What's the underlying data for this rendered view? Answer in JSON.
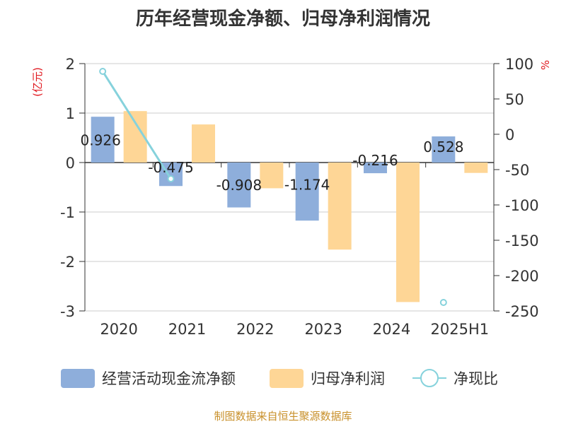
{
  "chart_data": {
    "type": "bar",
    "title": "历年经营现金净额、归母净利润情况",
    "source": "制图数据来自恒生聚源数据库",
    "categories": [
      "2020",
      "2021",
      "2022",
      "2023",
      "2024",
      "2025H1"
    ],
    "ylabel_left": "(亿元)",
    "ylabel_right": "%",
    "ylim_left": [
      -3,
      2
    ],
    "ylim_right": [
      -250,
      100
    ],
    "yticks_left": [
      "2",
      "1",
      "0",
      "-1",
      "-2",
      "-3"
    ],
    "yticks_right": [
      "100",
      "50",
      "0",
      "-50",
      "-100",
      "-150",
      "-200",
      "-250"
    ],
    "grid": true,
    "legend_position": "bottom",
    "series": [
      {
        "name": "经营活动现金流净额",
        "type": "bar",
        "axis": "left",
        "color": "#8eaedb",
        "values": [
          0.926,
          -0.475,
          -0.908,
          -1.174,
          -0.216,
          0.528
        ],
        "labels": [
          "0.926",
          "-0.475",
          "-0.908",
          "-1.174",
          "-0.216",
          "0.528"
        ]
      },
      {
        "name": "归母净利润",
        "type": "bar",
        "axis": "left",
        "color": "#fed696",
        "values": [
          1.04,
          0.77,
          -0.52,
          -1.76,
          -2.82,
          -0.21
        ]
      },
      {
        "name": "净现比",
        "type": "line",
        "axis": "right",
        "color": "#86d2dc",
        "values": [
          89,
          -63,
          null,
          null,
          null,
          -238
        ]
      }
    ]
  }
}
